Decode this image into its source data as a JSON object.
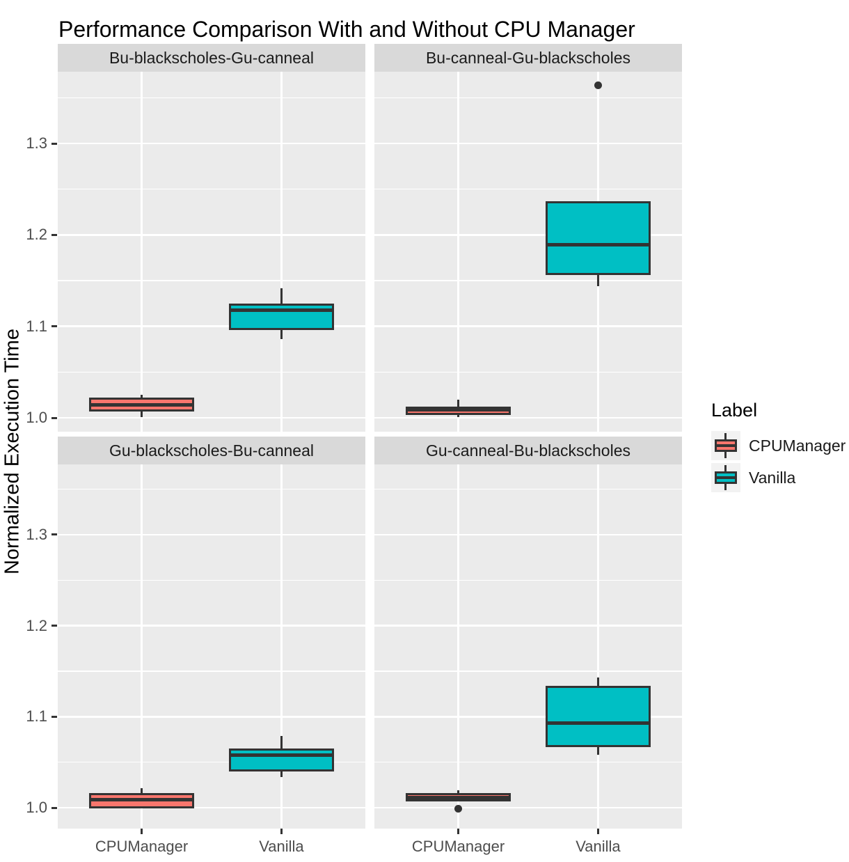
{
  "chart_data": {
    "type": "boxplot",
    "title": "Performance Comparison With and Without CPU Manager",
    "ylabel": "Normalized Execution Time",
    "xlabel": "",
    "categories": [
      "CPUManager",
      "Vanilla"
    ],
    "y_ticks": [
      "1.0",
      "1.1",
      "1.2",
      "1.3"
    ],
    "y_minor_gridlines": [
      1.05,
      1.15,
      1.25,
      1.35
    ],
    "ylim": [
      0.985,
      1.378
    ],
    "grid": true,
    "legend": {
      "title": "Label",
      "position": "right",
      "entries": [
        {
          "label": "CPUManager",
          "color": "#F8766D"
        },
        {
          "label": "Vanilla",
          "color": "#00BFC4"
        }
      ]
    },
    "style": {
      "panel_bg": "#EBEBEB",
      "strip_bg": "#D9D9D9",
      "grid_color": "#FFFFFF",
      "box_outline": "#333333",
      "axis_text_color": "#4D4D4D",
      "strip_text_color": "#1A1A1A"
    },
    "facets": [
      {
        "label": "Bu-blackscholes-Gu-canneal",
        "boxes": [
          {
            "group": "CPUManager",
            "whisker_low": 1.001,
            "q1": 1.008,
            "median": 1.014,
            "q3": 1.021,
            "whisker_high": 1.024,
            "outliers": []
          },
          {
            "group": "Vanilla",
            "whisker_low": 1.086,
            "q1": 1.097,
            "median": 1.118,
            "q3": 1.124,
            "whisker_high": 1.141,
            "outliers": []
          }
        ]
      },
      {
        "label": "Bu-canneal-Gu-blackscholes",
        "boxes": [
          {
            "group": "CPUManager",
            "whisker_low": 1.001,
            "q1": 1.004,
            "median": 1.009,
            "q3": 1.011,
            "whisker_high": 1.019,
            "outliers": []
          },
          {
            "group": "Vanilla",
            "whisker_low": 1.144,
            "q1": 1.157,
            "median": 1.189,
            "q3": 1.236,
            "whisker_high": 1.236,
            "outliers": [
              1.364
            ]
          }
        ]
      },
      {
        "label": "Gu-blackscholes-Bu-canneal",
        "boxes": [
          {
            "group": "CPUManager",
            "whisker_low": 1.0,
            "q1": 1.0,
            "median": 1.009,
            "q3": 1.015,
            "whisker_high": 1.021,
            "outliers": []
          },
          {
            "group": "Vanilla",
            "whisker_low": 1.034,
            "q1": 1.041,
            "median": 1.058,
            "q3": 1.064,
            "whisker_high": 1.078,
            "outliers": []
          }
        ]
      },
      {
        "label": "Gu-canneal-Bu-blackscholes",
        "boxes": [
          {
            "group": "CPUManager",
            "whisker_low": 1.008,
            "q1": 1.008,
            "median": 1.011,
            "q3": 1.015,
            "whisker_high": 1.018,
            "outliers": [
              0.999
            ]
          },
          {
            "group": "Vanilla",
            "whisker_low": 1.058,
            "q1": 1.068,
            "median": 1.093,
            "q3": 1.133,
            "whisker_high": 1.142,
            "outliers": []
          }
        ]
      }
    ]
  }
}
